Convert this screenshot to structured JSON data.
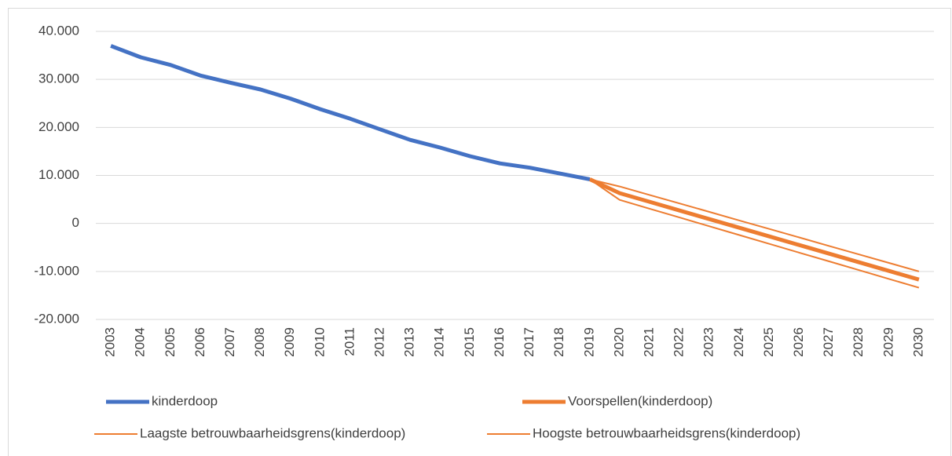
{
  "chart_data": {
    "type": "line",
    "categories": [
      "2003",
      "2004",
      "2005",
      "2006",
      "2007",
      "2008",
      "2009",
      "2010",
      "2011",
      "2012",
      "2013",
      "2014",
      "2015",
      "2016",
      "2017",
      "2018",
      "2019",
      "2020",
      "2021",
      "2022",
      "2023",
      "2024",
      "2025",
      "2026",
      "2027",
      "2028",
      "2029",
      "2030"
    ],
    "series": [
      {
        "name": "kinderdoop",
        "color": "#4472c4",
        "values": [
          37000,
          34600,
          33000,
          30800,
          29300,
          27900,
          26000,
          23800,
          21800,
          19600,
          17400,
          15800,
          14000,
          12500,
          11600,
          10400,
          9200,
          null,
          null,
          null,
          null,
          null,
          null,
          null,
          null,
          null,
          null,
          null
        ]
      },
      {
        "name": "Voorspellen(kinderdoop)",
        "color": "#ed7d31",
        "values": [
          null,
          null,
          null,
          null,
          null,
          null,
          null,
          null,
          null,
          null,
          null,
          null,
          null,
          null,
          null,
          null,
          9200,
          6300,
          4500,
          2700,
          900,
          -900,
          -2700,
          -4500,
          -6300,
          -8100,
          -9900,
          -11700
        ]
      },
      {
        "name": "Laagste betrouwbaarheidsgrens(kinderdoop)",
        "color": "#ed7d31",
        "values": [
          null,
          null,
          null,
          null,
          null,
          null,
          null,
          null,
          null,
          null,
          null,
          null,
          null,
          null,
          null,
          null,
          9200,
          4900,
          3070,
          1240,
          -590,
          -2420,
          -4250,
          -6080,
          -7910,
          -9740,
          -11570,
          -13400
        ]
      },
      {
        "name": "Hoogste betrouwbaarheidsgrens(kinderdoop)",
        "color": "#ed7d31",
        "values": [
          null,
          null,
          null,
          null,
          null,
          null,
          null,
          null,
          null,
          null,
          null,
          null,
          null,
          null,
          null,
          null,
          9200,
          7700,
          5930,
          4160,
          2390,
          620,
          -1150,
          -2920,
          -4690,
          -6460,
          -8230,
          -10000
        ]
      }
    ],
    "ylim": [
      -20000,
      40000
    ],
    "yticks": [
      {
        "value": -20000,
        "label": "-20.000"
      },
      {
        "value": -10000,
        "label": "-10.000"
      },
      0,
      {
        "value": 10000,
        "label": "10.000"
      },
      {
        "value": 20000,
        "label": "20.000"
      },
      {
        "value": 30000,
        "label": "30.000"
      },
      {
        "value": 40000,
        "label": "40.000"
      }
    ],
    "grid": true
  }
}
